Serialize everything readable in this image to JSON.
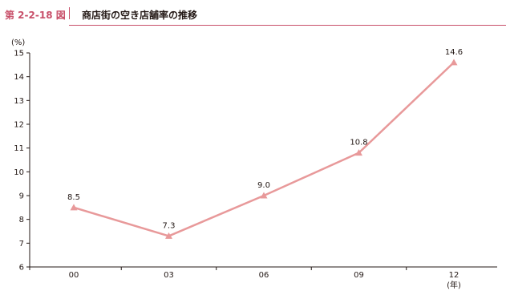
{
  "header": {
    "figure_number": "第 2-2-18 図",
    "title": "商店街の空き店舗率の推移"
  },
  "colors": {
    "accent": "#c8506a",
    "series": "#e8999a"
  },
  "chart_data": {
    "type": "line",
    "title": "商店街の空き店舗率の推移",
    "ylabel": "(%)",
    "xlabel": "(年)",
    "categories": [
      "00",
      "03",
      "06",
      "09",
      "12"
    ],
    "series": [
      {
        "values": [
          8.5,
          7.3,
          9.0,
          10.8,
          14.6
        ]
      }
    ],
    "data_labels": [
      "8.5",
      "7.3",
      "9.0",
      "10.8",
      "14.6"
    ],
    "ylim": [
      6,
      15
    ],
    "yticks": [
      "6",
      "7",
      "8",
      "9",
      "10",
      "11",
      "12",
      "13",
      "14",
      "15"
    ],
    "marker": "triangle",
    "grid": false
  }
}
